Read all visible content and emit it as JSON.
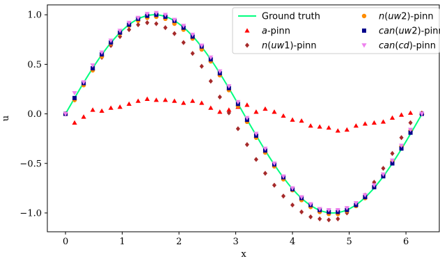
{
  "chart_data": {
    "type": "scatter",
    "xlabel": "x",
    "ylabel": "u",
    "xlim": [
      -0.32,
      6.6
    ],
    "ylim": [
      -1.19,
      1.1
    ],
    "xticks": [
      0,
      1,
      2,
      3,
      4,
      5,
      6
    ],
    "yticks": [
      1.0,
      0.5,
      0.0,
      -0.5,
      -1.0
    ],
    "ytick_labels": [
      "1.0",
      "0.5",
      "0.0",
      "−0.5",
      "−1.0"
    ],
    "grid": false,
    "legend_position": "top-right",
    "series": [
      {
        "name": "Ground truth",
        "kind": "line",
        "color": "#00ff7f"
      },
      {
        "name": "a-pinn",
        "kind": "triangle-up",
        "color": "#ff0000",
        "x": [
          0.0,
          0.16,
          0.32,
          0.48,
          0.64,
          0.8,
          0.96,
          1.12,
          1.28,
          1.44,
          1.6,
          1.76,
          1.92,
          2.08,
          2.24,
          2.4,
          2.56,
          2.72,
          2.88,
          3.04,
          3.2,
          3.36,
          3.52,
          3.68,
          3.84,
          4.0,
          4.16,
          4.32,
          4.48,
          4.64,
          4.8,
          4.96,
          5.12,
          5.28,
          5.44,
          5.6,
          5.76,
          5.92,
          6.08,
          6.28
        ],
        "y": [
          0.0,
          -0.09,
          -0.03,
          0.04,
          0.03,
          0.06,
          0.07,
          0.1,
          0.13,
          0.15,
          0.14,
          0.14,
          0.13,
          0.11,
          0.13,
          0.11,
          0.06,
          0.02,
          0.04,
          0.07,
          0.09,
          0.02,
          0.05,
          0.02,
          -0.02,
          -0.06,
          -0.07,
          -0.12,
          -0.13,
          -0.14,
          -0.17,
          -0.16,
          -0.12,
          -0.1,
          -0.09,
          -0.08,
          -0.04,
          -0.01,
          0.01,
          0.01
        ]
      },
      {
        "name": "n(uw1)-pinn",
        "kind": "diamond",
        "color": "#a52a2a",
        "x": [
          0.0,
          0.16,
          0.32,
          0.48,
          0.64,
          0.8,
          0.96,
          1.12,
          1.28,
          1.44,
          1.6,
          1.76,
          1.92,
          2.08,
          2.24,
          2.4,
          2.56,
          2.72,
          2.88,
          3.04,
          3.2,
          3.36,
          3.52,
          3.68,
          3.84,
          4.0,
          4.16,
          4.32,
          4.48,
          4.64,
          4.8,
          4.96,
          5.12,
          5.28,
          5.44,
          5.6,
          5.76,
          5.92,
          6.08,
          6.28
        ],
        "y": [
          0.0,
          0.14,
          0.3,
          0.44,
          0.57,
          0.69,
          0.78,
          0.85,
          0.9,
          0.92,
          0.91,
          0.87,
          0.81,
          0.72,
          0.61,
          0.48,
          0.33,
          0.17,
          0.01,
          -0.15,
          -0.31,
          -0.46,
          -0.6,
          -0.72,
          -0.83,
          -0.92,
          -0.99,
          -1.04,
          -1.06,
          -1.07,
          -1.06,
          -1.0,
          -0.92,
          -0.82,
          -0.69,
          -0.55,
          -0.4,
          -0.24,
          -0.09,
          0.0
        ]
      },
      {
        "name": "n(uw2)-pinn",
        "kind": "circle",
        "color": "#ff8c00",
        "x": [
          0.0,
          0.16,
          0.32,
          0.48,
          0.64,
          0.8,
          0.96,
          1.12,
          1.28,
          1.44,
          1.6,
          1.76,
          1.92,
          2.08,
          2.24,
          2.4,
          2.56,
          2.72,
          2.88,
          3.04,
          3.2,
          3.36,
          3.52,
          3.68,
          3.84,
          4.0,
          4.16,
          4.32,
          4.48,
          4.64,
          4.8,
          4.96,
          5.12,
          5.28,
          5.44,
          5.6,
          5.76,
          5.92,
          6.08,
          6.28
        ],
        "y": [
          0.0,
          0.14,
          0.29,
          0.44,
          0.58,
          0.71,
          0.81,
          0.89,
          0.94,
          0.97,
          0.98,
          0.96,
          0.91,
          0.85,
          0.76,
          0.65,
          0.53,
          0.39,
          0.24,
          0.08,
          -0.08,
          -0.24,
          -0.39,
          -0.53,
          -0.66,
          -0.77,
          -0.87,
          -0.94,
          -0.99,
          -1.01,
          -1.01,
          -0.98,
          -0.93,
          -0.85,
          -0.74,
          -0.62,
          -0.48,
          -0.33,
          -0.17,
          0.0
        ]
      },
      {
        "name": "can(uw2)-pinn",
        "kind": "square",
        "color": "#00008b",
        "x": [
          0.0,
          0.16,
          0.32,
          0.48,
          0.64,
          0.8,
          0.96,
          1.12,
          1.28,
          1.44,
          1.6,
          1.76,
          1.92,
          2.08,
          2.24,
          2.4,
          2.56,
          2.72,
          2.88,
          3.04,
          3.2,
          3.36,
          3.52,
          3.68,
          3.84,
          4.0,
          4.16,
          4.32,
          4.48,
          4.64,
          4.8,
          4.96,
          5.12,
          5.28,
          5.44,
          5.6,
          5.76,
          5.92,
          6.08,
          6.28
        ],
        "y": [
          0.0,
          0.16,
          0.31,
          0.46,
          0.6,
          0.72,
          0.82,
          0.9,
          0.96,
          0.99,
          1.0,
          0.98,
          0.94,
          0.87,
          0.78,
          0.68,
          0.55,
          0.41,
          0.26,
          0.1,
          -0.06,
          -0.22,
          -0.37,
          -0.51,
          -0.64,
          -0.76,
          -0.85,
          -0.92,
          -0.97,
          -0.99,
          -0.99,
          -0.97,
          -0.92,
          -0.84,
          -0.74,
          -0.63,
          -0.5,
          -0.35,
          -0.19,
          0.0
        ]
      },
      {
        "name": "can(cd)-pinn",
        "kind": "triangle-down",
        "color": "#ee82ee",
        "x": [
          0.0,
          0.16,
          0.32,
          0.48,
          0.64,
          0.8,
          0.96,
          1.12,
          1.28,
          1.44,
          1.6,
          1.76,
          1.92,
          2.08,
          2.24,
          2.4,
          2.56,
          2.72,
          2.88,
          3.04,
          3.2,
          3.36,
          3.52,
          3.68,
          3.84,
          4.0,
          4.16,
          4.32,
          4.48,
          4.64,
          4.8,
          4.96,
          5.12,
          5.28,
          5.44,
          5.6,
          5.76,
          5.92,
          6.08,
          6.28
        ],
        "y": [
          0.0,
          0.21,
          0.32,
          0.49,
          0.62,
          0.74,
          0.84,
          0.92,
          0.97,
          1.01,
          1.02,
          1.0,
          0.95,
          0.89,
          0.8,
          0.69,
          0.57,
          0.43,
          0.28,
          0.12,
          -0.04,
          -0.2,
          -0.35,
          -0.5,
          -0.63,
          -0.75,
          -0.84,
          -0.91,
          -0.96,
          -0.97,
          -0.97,
          -0.95,
          -0.9,
          -0.82,
          -0.72,
          -0.61,
          -0.47,
          -0.32,
          -0.16,
          0.0
        ]
      }
    ]
  },
  "legend": {
    "items": [
      {
        "plain": "Ground truth"
      },
      {
        "italic": "a",
        "plain": "-pinn"
      },
      {
        "italic": "n",
        "plain": "(",
        "italic2": "uw",
        "plain2": "1)-pinn"
      },
      {
        "italic": "n",
        "plain": "(",
        "italic2": "uw",
        "plain2": "2)-pinn"
      },
      {
        "italic": "can",
        "plain": "(",
        "italic2": "uw",
        "plain2": "2)-pinn"
      },
      {
        "italic": "can",
        "plain": "(",
        "italic2": "cd",
        "plain2": ")-pinn"
      }
    ]
  }
}
